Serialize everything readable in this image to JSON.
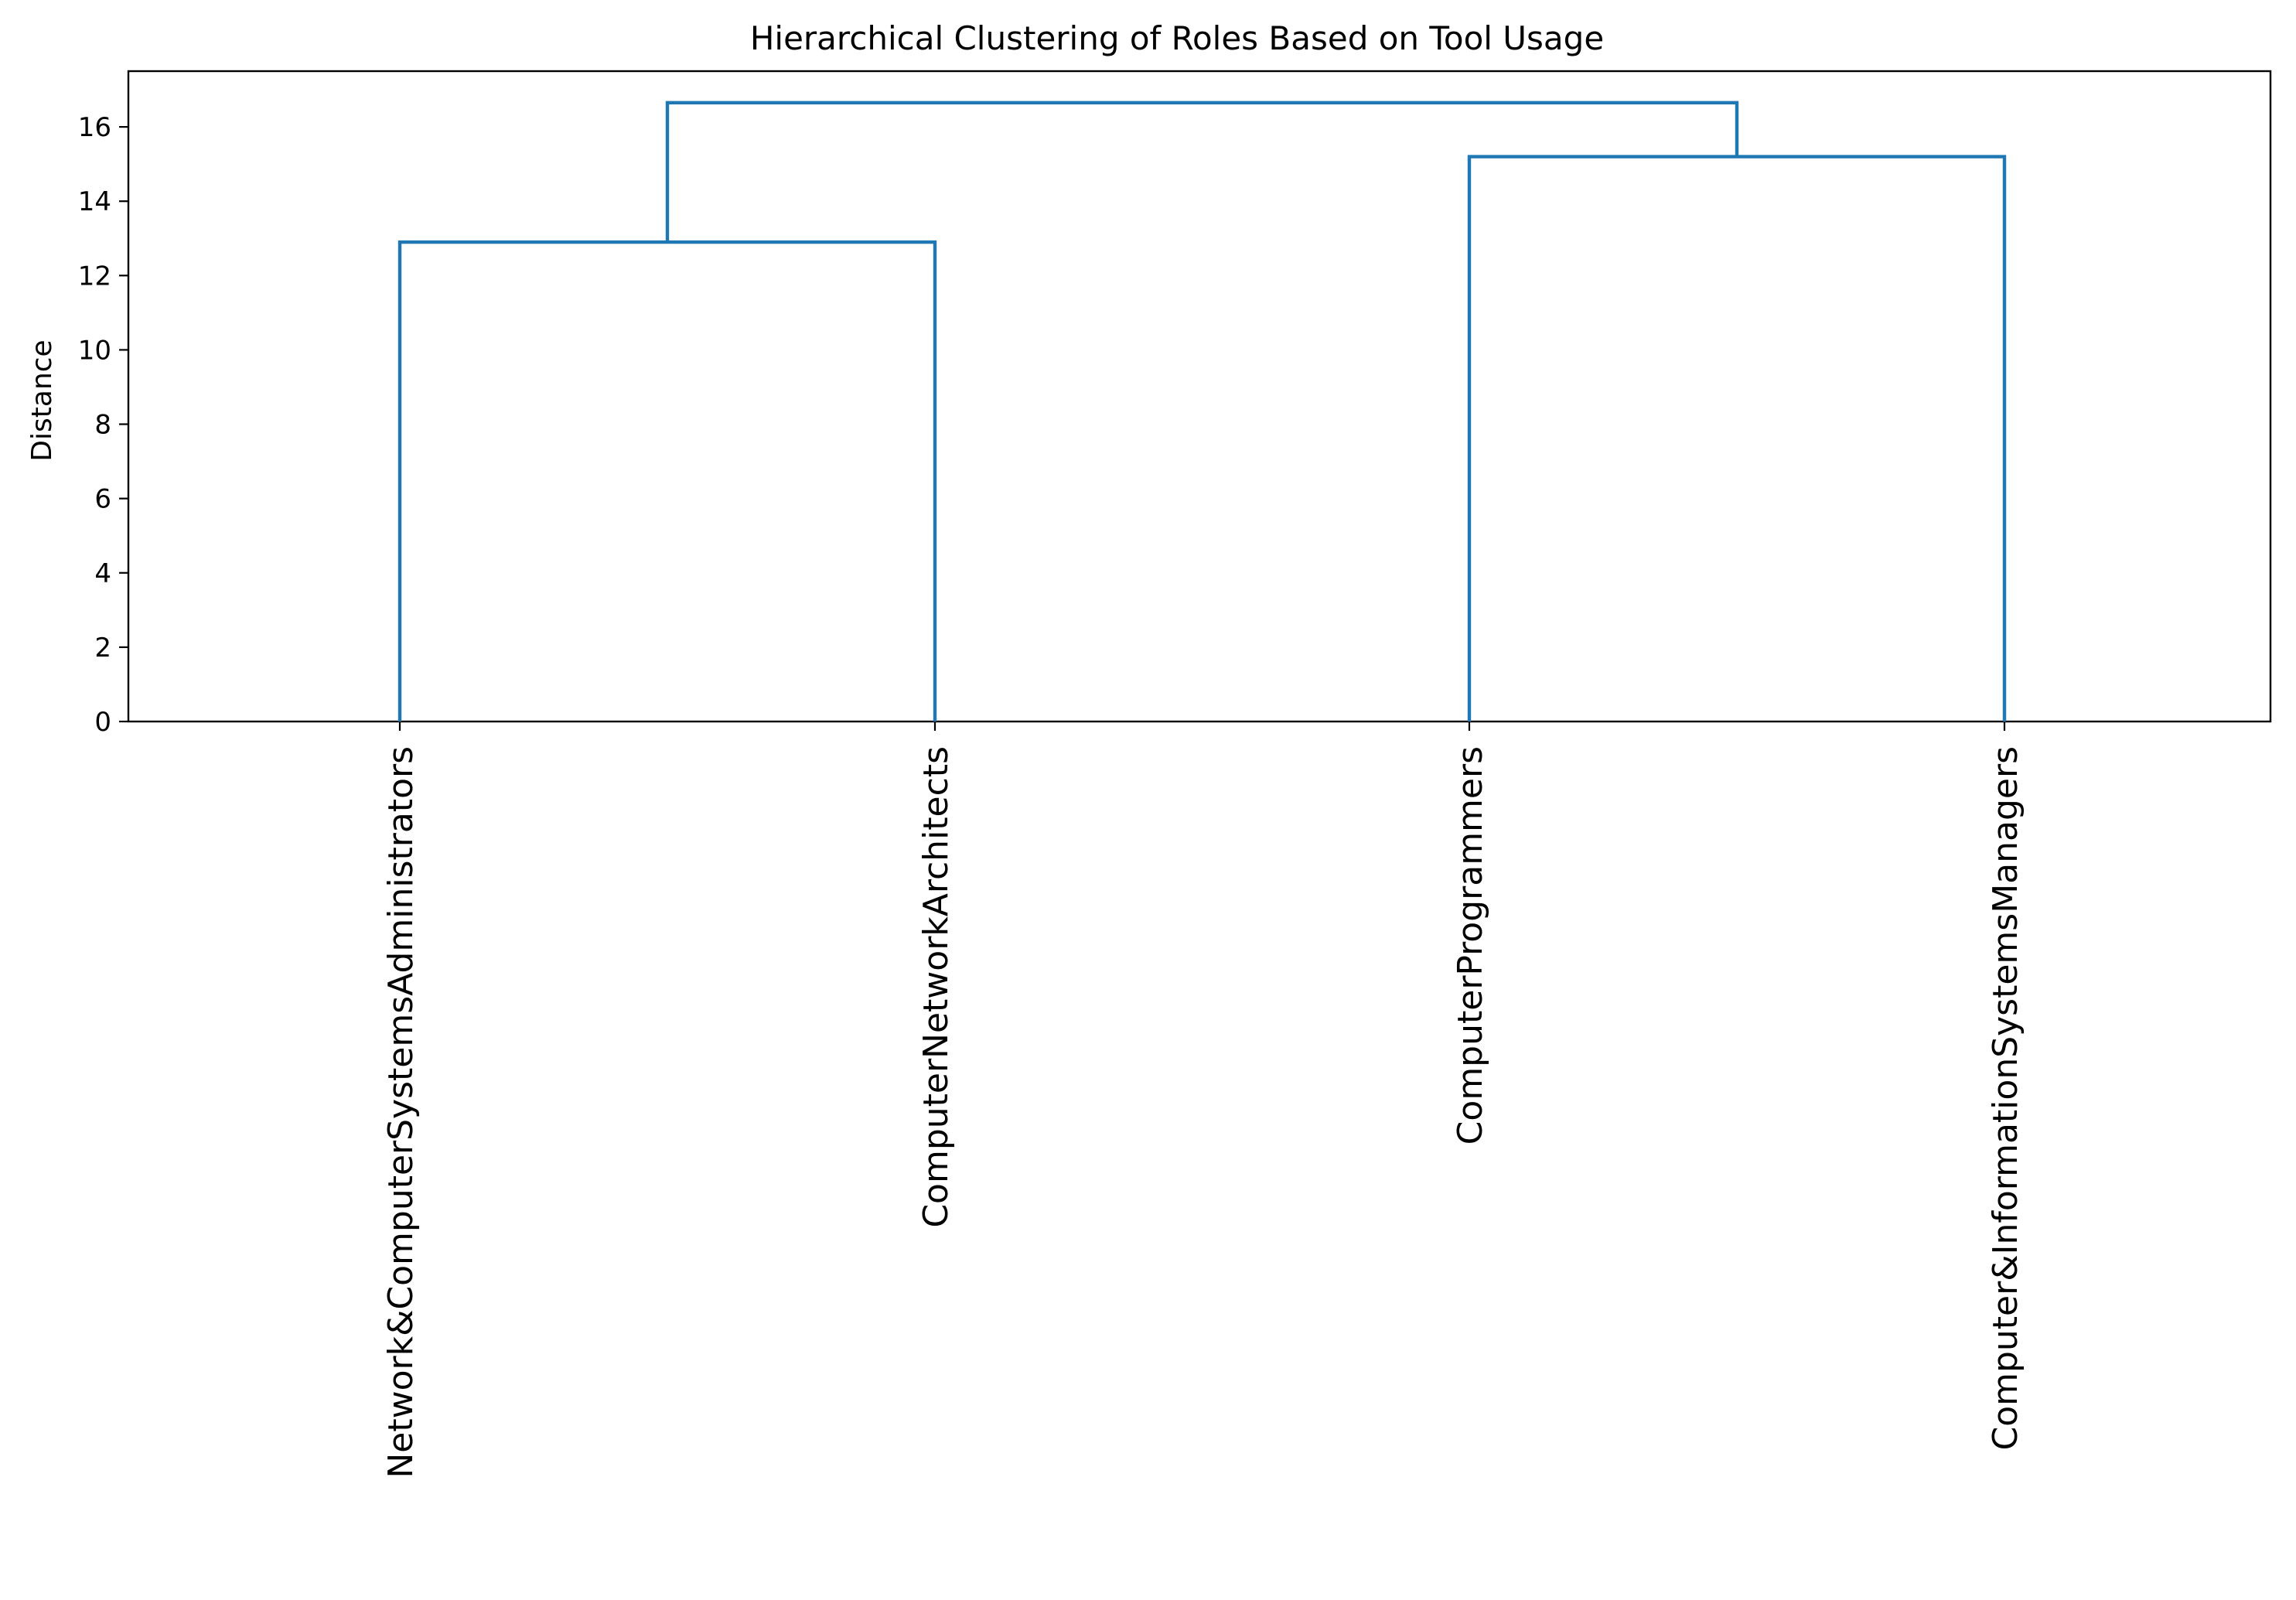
{
  "chart_data": {
    "type": "dendrogram",
    "title": "Hierarchical Clustering of Roles Based on Tool Usage",
    "xlabel": "",
    "ylabel": "Distance",
    "ylim": [
      0,
      17.5
    ],
    "yticks": [
      0,
      2,
      4,
      6,
      8,
      10,
      12,
      14,
      16
    ],
    "grid": false,
    "line_color": "#1f77b4",
    "leaves": [
      "Network&ComputerSystemsAdministrators",
      "ComputerNetworkArchitects",
      "ComputerProgrammers",
      "Computer&InformationSystemsManagers"
    ],
    "merges": [
      {
        "left": "Network&ComputerSystemsAdministrators",
        "right": "ComputerNetworkArchitects",
        "distance": 12.9
      },
      {
        "left": "ComputerProgrammers",
        "right": "Computer&InformationSystemsManagers",
        "distance": 15.2
      },
      {
        "left": "cluster-1",
        "right": "cluster-2",
        "distance": 16.65
      }
    ]
  }
}
